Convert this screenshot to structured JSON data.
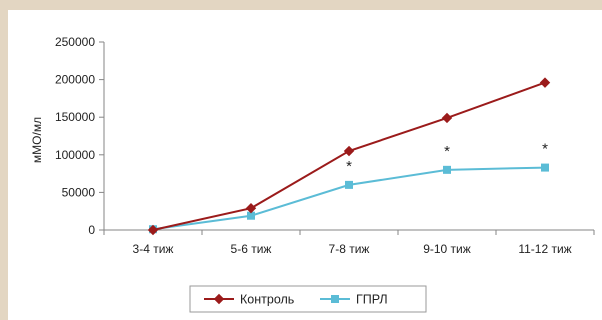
{
  "chart_data": {
    "type": "line",
    "title": "",
    "xlabel": "",
    "ylabel": "мМО/мл",
    "categories": [
      "3-4 тиж",
      "5-6 тиж",
      "7-8 тиж",
      "9-10 тиж",
      "11-12 тиж"
    ],
    "ylim": [
      0,
      250000
    ],
    "yticks": [
      0,
      50000,
      100000,
      150000,
      200000,
      250000
    ],
    "grid": false,
    "legend_position": "bottom",
    "series": [
      {
        "name": "Контроль",
        "color": "#9b1b1b",
        "marker": "diamond",
        "values": [
          0,
          29000,
          105000,
          149000,
          196000
        ]
      },
      {
        "name": "ГПРЛ",
        "color": "#5bbcd6",
        "marker": "square",
        "values": [
          1000,
          19000,
          60000,
          80000,
          83000
        ]
      }
    ],
    "annotations": [
      {
        "series": 1,
        "index": 2,
        "text": "*"
      },
      {
        "series": 1,
        "index": 3,
        "text": "*"
      },
      {
        "series": 1,
        "index": 4,
        "text": "*"
      }
    ]
  }
}
